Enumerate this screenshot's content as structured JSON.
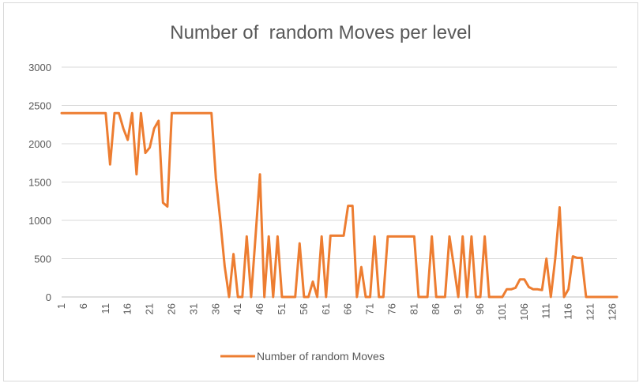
{
  "chart_data": {
    "type": "line",
    "title": "Number of  random Moves per level",
    "xlabel": "",
    "ylabel": "",
    "ylim": [
      0,
      3000
    ],
    "yticks": [
      0,
      500,
      1000,
      1500,
      2000,
      2500,
      3000
    ],
    "x": [
      1,
      2,
      3,
      4,
      5,
      6,
      7,
      8,
      9,
      10,
      11,
      12,
      13,
      14,
      15,
      16,
      17,
      18,
      19,
      20,
      21,
      22,
      23,
      24,
      25,
      26,
      27,
      28,
      29,
      30,
      31,
      32,
      33,
      34,
      35,
      36,
      37,
      38,
      39,
      40,
      41,
      42,
      43,
      44,
      45,
      46,
      47,
      48,
      49,
      50,
      51,
      52,
      53,
      54,
      55,
      56,
      57,
      58,
      59,
      60,
      61,
      62,
      63,
      64,
      65,
      66,
      67,
      68,
      69,
      70,
      71,
      72,
      73,
      74,
      75,
      76,
      77,
      78,
      79,
      80,
      81,
      82,
      83,
      84,
      85,
      86,
      87,
      88,
      89,
      90,
      91,
      92,
      93,
      94,
      95,
      96,
      97,
      98,
      99,
      100,
      101,
      102,
      103,
      104,
      105,
      106,
      107,
      108,
      109,
      110,
      111,
      112,
      113,
      114,
      115,
      116,
      117,
      118,
      119,
      120,
      121,
      122,
      123,
      124,
      125,
      126,
      127
    ],
    "xticks": [
      1,
      6,
      11,
      16,
      21,
      26,
      31,
      36,
      41,
      46,
      51,
      56,
      61,
      66,
      71,
      76,
      81,
      86,
      91,
      96,
      101,
      106,
      111,
      116,
      121,
      126
    ],
    "grid": true,
    "legend_position": "bottom",
    "series": [
      {
        "name": "Number of  random Moves",
        "color": "#ed7d31",
        "values": [
          2400,
          2400,
          2400,
          2400,
          2400,
          2400,
          2400,
          2400,
          2400,
          2400,
          2400,
          1730,
          2400,
          2400,
          2200,
          2050,
          2400,
          1600,
          2400,
          1880,
          1950,
          2200,
          2300,
          1230,
          1180,
          2400,
          2400,
          2400,
          2400,
          2400,
          2400,
          2400,
          2400,
          2400,
          2400,
          1550,
          1000,
          400,
          0,
          560,
          0,
          0,
          790,
          0,
          790,
          1600,
          0,
          790,
          0,
          790,
          0,
          0,
          0,
          0,
          700,
          0,
          0,
          200,
          0,
          790,
          0,
          800,
          800,
          800,
          800,
          1190,
          1190,
          0,
          390,
          0,
          0,
          790,
          0,
          0,
          790,
          790,
          790,
          790,
          790,
          790,
          790,
          0,
          0,
          0,
          790,
          0,
          0,
          0,
          790,
          400,
          0,
          790,
          0,
          790,
          0,
          0,
          790,
          0,
          0,
          0,
          0,
          100,
          100,
          120,
          230,
          230,
          130,
          100,
          100,
          90,
          500,
          0,
          500,
          1170,
          0,
          100,
          530,
          510,
          510,
          0,
          0,
          0,
          0,
          0,
          0,
          0,
          0
        ]
      }
    ]
  }
}
